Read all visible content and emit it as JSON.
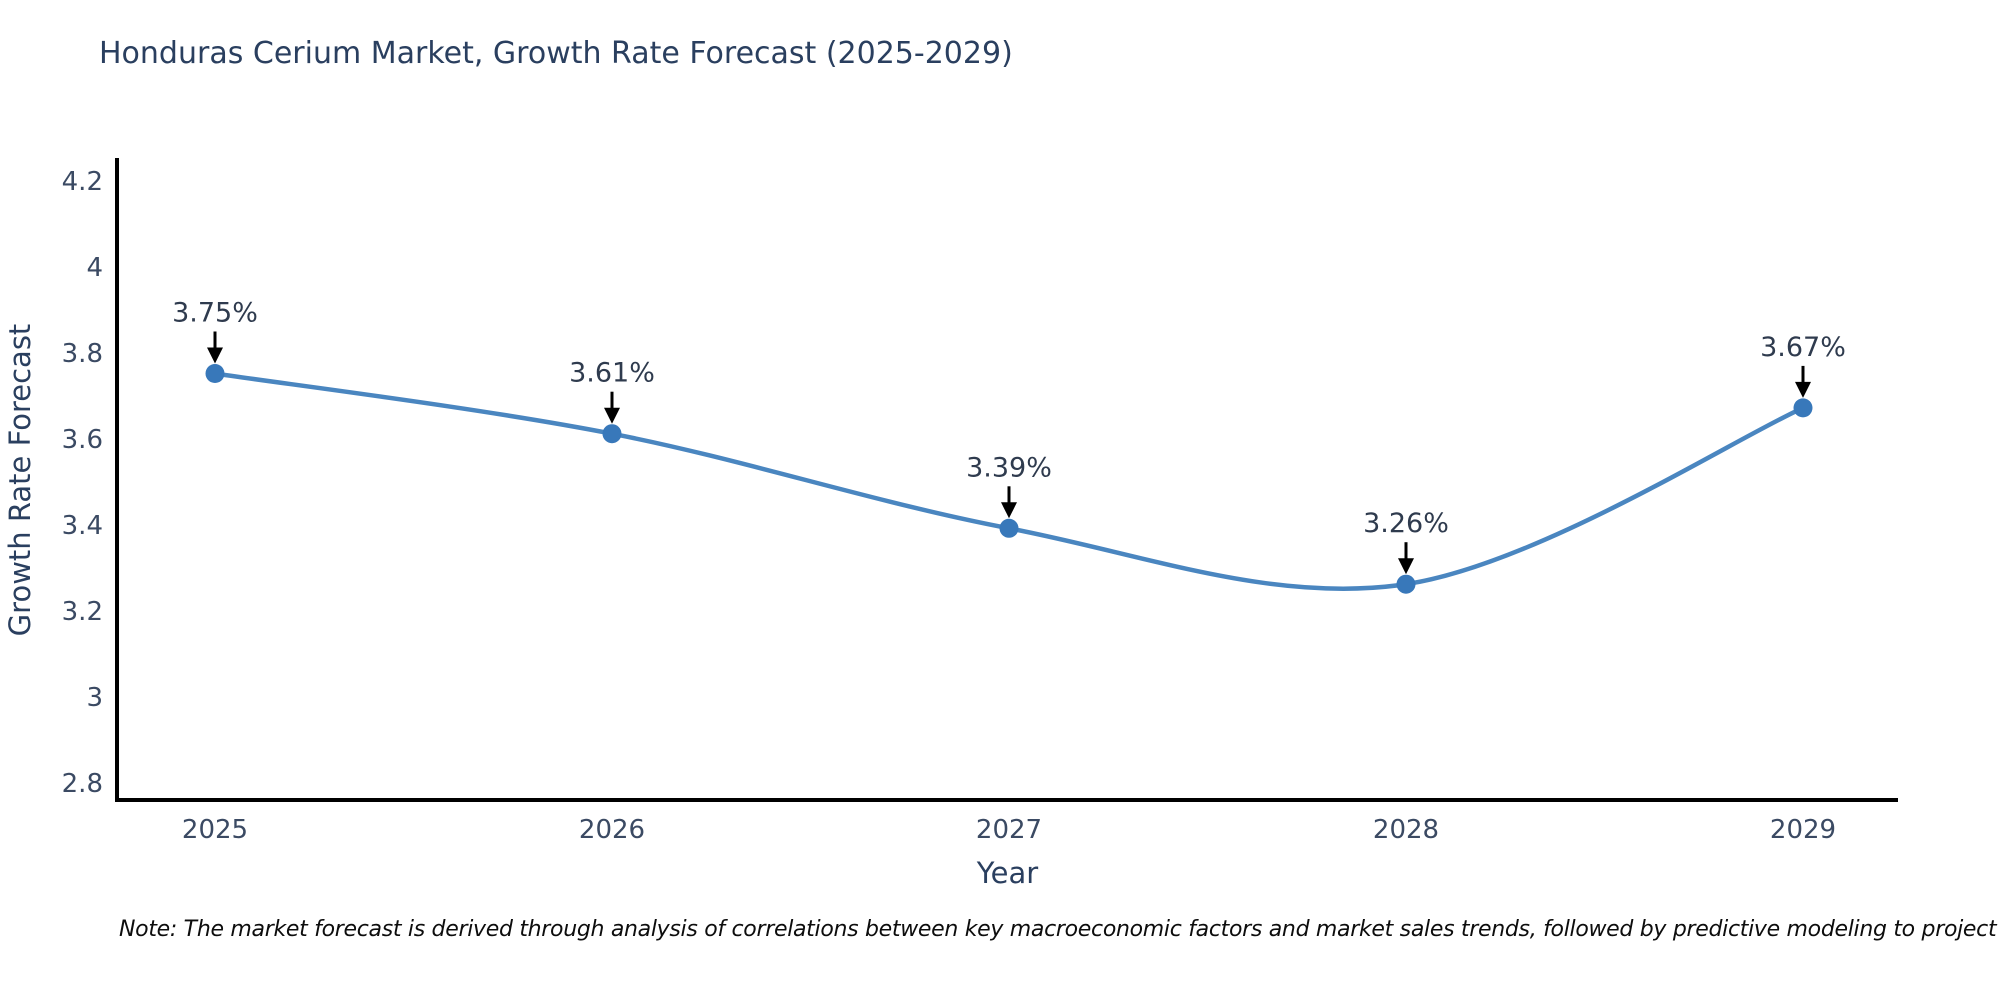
{
  "chart_data": {
    "type": "line",
    "title": "Honduras Cerium Market, Growth Rate Forecast (2025-2029)",
    "x": [
      "2025",
      "2026",
      "2027",
      "2028",
      "2029"
    ],
    "series": [
      {
        "name": "Growth Rate Forecast",
        "values": [
          3.75,
          3.61,
          3.39,
          3.26,
          3.67
        ],
        "point_labels": [
          "3.75%",
          "3.61%",
          "3.39%",
          "3.26%",
          "3.67%"
        ]
      }
    ],
    "xlabel": "Year",
    "ylabel": "Growth Rate Forecast",
    "yticks": [
      2.8,
      3,
      3.2,
      3.4,
      3.6,
      3.8,
      4,
      4.2
    ],
    "ylim": [
      2.76,
      4.25
    ],
    "line_shape": "spline",
    "grid": false,
    "legend_position": "none",
    "annotation_style": "value label with downward black arrow above each marker",
    "colors": {
      "line": "#4a86c0",
      "marker": "#3878ba",
      "axis": "#000000",
      "arrow": "#000000",
      "tick_text": "#3b4a63",
      "axis_title_text": "#2a3f5f",
      "title_text": "#2a3f5f",
      "annotation_text": "#2f3b4e",
      "background": "#ffffff"
    }
  },
  "note": "Note: The market forecast is derived through analysis of correlations between key macroeconomic factors and market sales trends, followed by predictive modeling to project future sales"
}
